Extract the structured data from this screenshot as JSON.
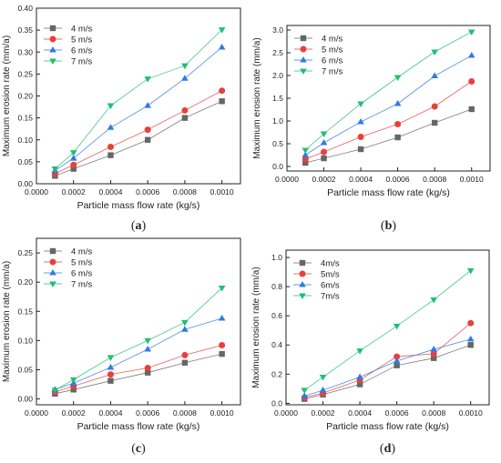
{
  "chart_data": [
    {
      "type": "line",
      "panel_label": "a",
      "xlabel": "Particle mass flow rate (kg/s)",
      "ylabel": "Maximum erosion rate (mm/a)",
      "xlim": [
        0.0,
        0.0011
      ],
      "ylim": [
        0.0,
        0.4
      ],
      "xticks": [
        "0.0000",
        "0.0002",
        "0.0004",
        "0.0006",
        "0.0008",
        "0.0010"
      ],
      "yticks": [
        "0.00",
        "0.05",
        "0.10",
        "0.15",
        "0.20",
        "0.25",
        "0.30",
        "0.35",
        "0.40"
      ],
      "legend_position": "top-left",
      "x": [
        0.0001,
        0.0002,
        0.0004,
        0.0006,
        0.0008,
        0.001
      ],
      "series": [
        {
          "name": "4 m/s",
          "color": "#666666",
          "marker": "square",
          "values": [
            0.018,
            0.034,
            0.065,
            0.1,
            0.15,
            0.188
          ]
        },
        {
          "name": "5 m/s",
          "color": "#e8413a",
          "marker": "circle",
          "values": [
            0.023,
            0.043,
            0.084,
            0.123,
            0.167,
            0.212
          ]
        },
        {
          "name": "6 m/s",
          "color": "#2f7be5",
          "marker": "triangle-up",
          "values": [
            0.03,
            0.058,
            0.128,
            0.178,
            0.24,
            0.311
          ]
        },
        {
          "name": "7 m/s",
          "color": "#1fbf74",
          "marker": "triangle-down",
          "values": [
            0.034,
            0.071,
            0.178,
            0.239,
            0.269,
            0.351
          ]
        }
      ]
    },
    {
      "type": "line",
      "panel_label": "b",
      "xlabel": "Particle mass flow rate (kg/s)",
      "ylabel": "Maximum erosion rate (mm/a)",
      "xlim": [
        0.0,
        0.0011
      ],
      "ylim": [
        -0.1,
        3.1
      ],
      "xticks": [
        "0.0000",
        "0.0002",
        "0.0004",
        "0.0006",
        "0.0008",
        "0.0010"
      ],
      "yticks": [
        "0.0",
        "0.5",
        "1.0",
        "1.5",
        "2.0",
        "2.5",
        "3.0"
      ],
      "legend_position": "top-left",
      "x": [
        0.0001,
        0.0002,
        0.0004,
        0.0006,
        0.0008,
        0.001
      ],
      "series": [
        {
          "name": "4 m/s",
          "color": "#666666",
          "marker": "square",
          "values": [
            0.08,
            0.18,
            0.38,
            0.64,
            0.96,
            1.26
          ]
        },
        {
          "name": "5 m/s",
          "color": "#e8413a",
          "marker": "circle",
          "values": [
            0.16,
            0.32,
            0.65,
            0.93,
            1.32,
            1.87
          ]
        },
        {
          "name": "6 m/s",
          "color": "#2f7be5",
          "marker": "triangle-up",
          "values": [
            0.25,
            0.52,
            0.98,
            1.38,
            1.99,
            2.44
          ]
        },
        {
          "name": "7 m/s",
          "color": "#1fbf74",
          "marker": "triangle-down",
          "values": [
            0.36,
            0.72,
            1.38,
            1.96,
            2.52,
            2.96
          ]
        }
      ]
    },
    {
      "type": "line",
      "panel_label": "c",
      "xlabel": "Particle mass flow rate (kg/s)",
      "ylabel": "Maximum erosion rate (mm/a)",
      "xlim": [
        0.0,
        0.0011
      ],
      "ylim": [
        -0.01,
        0.275
      ],
      "xticks": [
        "0.0000",
        "0.0002",
        "0.0004",
        "0.0006",
        "0.0008",
        "0.0010"
      ],
      "yticks": [
        "0.00",
        "0.05",
        "0.10",
        "0.15",
        "0.20",
        "0.25"
      ],
      "legend_position": "top-left",
      "x": [
        0.0001,
        0.0002,
        0.0004,
        0.0006,
        0.0008,
        0.001
      ],
      "series": [
        {
          "name": "4 m/s",
          "color": "#666666",
          "marker": "square",
          "values": [
            0.009,
            0.016,
            0.031,
            0.045,
            0.062,
            0.077
          ]
        },
        {
          "name": "5 m/s",
          "color": "#e8413a",
          "marker": "circle",
          "values": [
            0.012,
            0.022,
            0.042,
            0.053,
            0.075,
            0.092
          ]
        },
        {
          "name": "6 m/s",
          "color": "#2f7be5",
          "marker": "triangle-up",
          "values": [
            0.016,
            0.027,
            0.054,
            0.085,
            0.119,
            0.138
          ]
        },
        {
          "name": "7 m/s",
          "color": "#1fbf74",
          "marker": "triangle-down",
          "values": [
            0.015,
            0.033,
            0.071,
            0.1,
            0.131,
            0.19
          ]
        }
      ]
    },
    {
      "type": "line",
      "panel_label": "d",
      "xlabel": "Particle mass flow rate (kg/s)",
      "ylabel": "Maximum erosion rate (mm/a)",
      "xlim": [
        0.0,
        0.0011
      ],
      "ylim": [
        -0.01,
        1.05
      ],
      "xticks": [
        "0.0000",
        "0.0002",
        "0.0004",
        "0.0006",
        "0.0008",
        "0.0010"
      ],
      "yticks": [
        "0.0",
        "0.2",
        "0.4",
        "0.6",
        "0.8",
        "1.0"
      ],
      "legend_position": "top-left",
      "x": [
        0.0001,
        0.0002,
        0.0004,
        0.0006,
        0.0008,
        0.001
      ],
      "series": [
        {
          "name": "4m/s",
          "color": "#666666",
          "marker": "square",
          "values": [
            0.03,
            0.06,
            0.13,
            0.26,
            0.31,
            0.4
          ]
        },
        {
          "name": "5m/s",
          "color": "#e8413a",
          "marker": "circle",
          "values": [
            0.04,
            0.07,
            0.16,
            0.32,
            0.34,
            0.55
          ]
        },
        {
          "name": "6m/s",
          "color": "#2f7be5",
          "marker": "triangle-up",
          "values": [
            0.05,
            0.09,
            0.18,
            0.29,
            0.37,
            0.44
          ]
        },
        {
          "name": "7m/s",
          "color": "#1fbf74",
          "marker": "triangle-down",
          "values": [
            0.09,
            0.18,
            0.36,
            0.53,
            0.71,
            0.91
          ]
        }
      ]
    }
  ]
}
